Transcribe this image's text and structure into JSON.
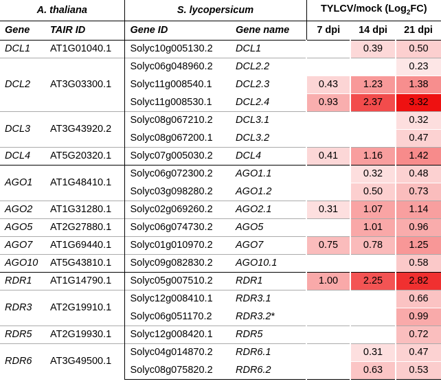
{
  "header": {
    "group_a": "A. thaliana",
    "group_s": "S. lycopersicum",
    "group_t_main": "TYLCV/mock (Log",
    "group_t_sub": "2",
    "group_t_end": "FC)",
    "col_gene": "Gene",
    "col_tair": "TAIR ID",
    "col_geneid": "Gene ID",
    "col_genename": "Gene name",
    "col_7": "7 dpi",
    "col_14": "14 dpi",
    "col_21": "21 dpi"
  },
  "colors": {
    "scale_max": "#ee1111",
    "scale_min": "#ffffff",
    "max_value": 3.32
  },
  "groups": [
    {
      "gene": "DCL1",
      "tair": "AT1G01040.1",
      "sep": "big",
      "rows": [
        {
          "solyc": "Solyc10g005130.2",
          "name": "DCL1",
          "d7": "",
          "d14": "0.39",
          "d21": "0.50"
        }
      ]
    },
    {
      "gene": "DCL2",
      "tair": "AT3G03300.1",
      "sep": "thin",
      "rows": [
        {
          "solyc": "Solyc06g048960.2",
          "name": "DCL2.2",
          "d7": "",
          "d14": "",
          "d21": "0.23"
        },
        {
          "solyc": "Solyc11g008540.1",
          "name": "DCL2.3",
          "d7": "0.43",
          "d14": "1.23",
          "d21": "1.38"
        },
        {
          "solyc": "Solyc11g008530.1",
          "name": "DCL2.4",
          "d7": "0.93",
          "d14": "2.37",
          "d21": "3.32"
        }
      ]
    },
    {
      "gene": "DCL3",
      "tair": "AT3G43920.2",
      "sep": "thin",
      "rows": [
        {
          "solyc": "Solyc08g067210.2",
          "name": "DCL3.1",
          "d7": "",
          "d14": "",
          "d21": "0.32"
        },
        {
          "solyc": "Solyc08g067200.1",
          "name": "DCL3.2",
          "d7": "",
          "d14": "",
          "d21": "0.47"
        }
      ]
    },
    {
      "gene": "DCL4",
      "tair": "AT5G20320.1",
      "sep": "thin",
      "rows": [
        {
          "solyc": "Solyc07g005030.2",
          "name": "DCL4",
          "d7": "0.41",
          "d14": "1.16",
          "d21": "1.42"
        }
      ]
    },
    {
      "gene": "AGO1",
      "tair": "AT1G48410.1",
      "sep": "big",
      "rows": [
        {
          "solyc": "Solyc06g072300.2",
          "name": "AGO1.1",
          "d7": "",
          "d14": "0.32",
          "d21": "0.48"
        },
        {
          "solyc": "Solyc03g098280.2",
          "name": "AGO1.2",
          "d7": "",
          "d14": "0.50",
          "d21": "0.73"
        }
      ]
    },
    {
      "gene": "AGO2",
      "tair": "AT1G31280.1",
      "sep": "thin",
      "rows": [
        {
          "solyc": "Solyc02g069260.2",
          "name": "AGO2.1",
          "d7": "0.31",
          "d14": "1.07",
          "d21": "1.14"
        }
      ]
    },
    {
      "gene": "AGO5",
      "tair": "AT2G27880.1",
      "sep": "thin",
      "rows": [
        {
          "solyc": "Solyc06g074730.2",
          "name": "AGO5",
          "d7": "",
          "d14": "1.01",
          "d21": "0.96"
        }
      ]
    },
    {
      "gene": "AGO7",
      "tair": "AT1G69440.1",
      "sep": "thin",
      "rows": [
        {
          "solyc": "Solyc01g010970.2",
          "name": "AGO7",
          "d7": "0.75",
          "d14": "0.78",
          "d21": "1.25"
        }
      ]
    },
    {
      "gene": "AGO10",
      "tair": "AT5G43810.1",
      "sep": "thin",
      "rows": [
        {
          "solyc": "Solyc09g082830.2",
          "name": "AGO10.1",
          "d7": "",
          "d14": "",
          "d21": "0.58"
        }
      ]
    },
    {
      "gene": "RDR1",
      "tair": "AT1G14790.1",
      "sep": "big",
      "rows": [
        {
          "solyc": "Solyc05g007510.2",
          "name": "RDR1",
          "d7": "1.00",
          "d14": "2.25",
          "d21": "2.82"
        }
      ]
    },
    {
      "gene": "RDR3",
      "tair": "AT2G19910.1",
      "sep": "thin",
      "rows": [
        {
          "solyc": "Solyc12g008410.1",
          "name": "RDR3.1",
          "d7": "",
          "d14": "",
          "d21": "0.66"
        },
        {
          "solyc": "Solyc06g051170.2",
          "name": "RDR3.2",
          "name_suffix": "*",
          "d7": "",
          "d14": "",
          "d21": "0.99"
        }
      ]
    },
    {
      "gene": "RDR5",
      "tair": "AT2G19930.1",
      "sep": "thin",
      "rows": [
        {
          "solyc": "Solyc12g008420.1",
          "name": "RDR5",
          "d7": "",
          "d14": "",
          "d21": "0.72"
        }
      ]
    },
    {
      "gene": "RDR6",
      "tair": "AT3G49500.1",
      "sep": "thin",
      "rows": [
        {
          "solyc": "Solyc04g014870.2",
          "name": "RDR6.1",
          "d7": "",
          "d14": "0.31",
          "d21": "0.47"
        },
        {
          "solyc": "Solyc08g075820.2",
          "name": "RDR6.2",
          "d7": "",
          "d14": "0.63",
          "d21": "0.53"
        }
      ]
    }
  ]
}
